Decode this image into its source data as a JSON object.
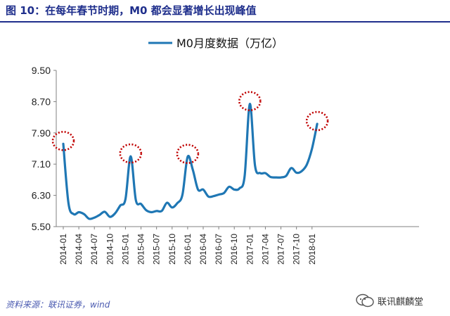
{
  "figure": {
    "title": "图 10：在每年春节时期，M0 都会显著增长出现峰值",
    "source": "资料来源：联讯证券，wind",
    "watermark": "联讯麒麟堂"
  },
  "colors": {
    "series": "#1f77b4",
    "title": "#1f2f8c",
    "highlight": "#c00000",
    "axis": "#808080"
  },
  "chart_data": {
    "type": "line",
    "title": "",
    "xlabel": "",
    "ylabel": "",
    "ylim": [
      5.5,
      9.5
    ],
    "yticks": [
      "5.50",
      "6.30",
      "7.10",
      "7.90",
      "8.70",
      "9.50"
    ],
    "xticks": [
      "2014-01",
      "2014-04",
      "2014-07",
      "2014-10",
      "2015-01",
      "2015-04",
      "2015-07",
      "2015-10",
      "2016-01",
      "2016-04",
      "2016-07",
      "2016-10",
      "2017-01",
      "2017-04",
      "2017-07",
      "2017-10",
      "2018-01"
    ],
    "legend": "top-center",
    "grid": false,
    "series": [
      {
        "name": "M0月度数据（万亿）",
        "x": [
          "2014-01",
          "2014-02",
          "2014-03",
          "2014-04",
          "2014-05",
          "2014-06",
          "2014-07",
          "2014-08",
          "2014-09",
          "2014-10",
          "2014-11",
          "2014-12",
          "2015-01",
          "2015-02",
          "2015-03",
          "2015-04",
          "2015-05",
          "2015-06",
          "2015-07",
          "2015-08",
          "2015-09",
          "2015-10",
          "2015-11",
          "2015-12",
          "2016-01",
          "2016-02",
          "2016-03",
          "2016-04",
          "2016-05",
          "2016-06",
          "2016-07",
          "2016-08",
          "2016-09",
          "2016-10",
          "2016-11",
          "2016-12",
          "2017-01",
          "2017-02",
          "2017-03",
          "2017-04",
          "2017-05",
          "2017-06",
          "2017-07",
          "2017-08",
          "2017-09",
          "2017-10",
          "2017-11",
          "2017-12",
          "2018-01",
          "2018-02"
        ],
        "values": [
          7.62,
          6.1,
          5.82,
          5.87,
          5.82,
          5.7,
          5.73,
          5.8,
          5.88,
          5.75,
          5.84,
          6.04,
          6.2,
          7.3,
          6.18,
          6.08,
          5.92,
          5.87,
          5.9,
          5.9,
          6.11,
          5.99,
          6.1,
          6.32,
          7.29,
          6.95,
          6.45,
          6.45,
          6.27,
          6.28,
          6.32,
          6.36,
          6.52,
          6.45,
          6.48,
          6.79,
          8.64,
          7.06,
          6.87,
          6.87,
          6.77,
          6.76,
          6.76,
          6.8,
          7.0,
          6.88,
          6.92,
          7.09,
          7.5,
          8.13
        ]
      }
    ],
    "highlights": [
      "2014-01",
      "2015-02",
      "2016-01",
      "2017-01",
      "2018-02"
    ]
  }
}
